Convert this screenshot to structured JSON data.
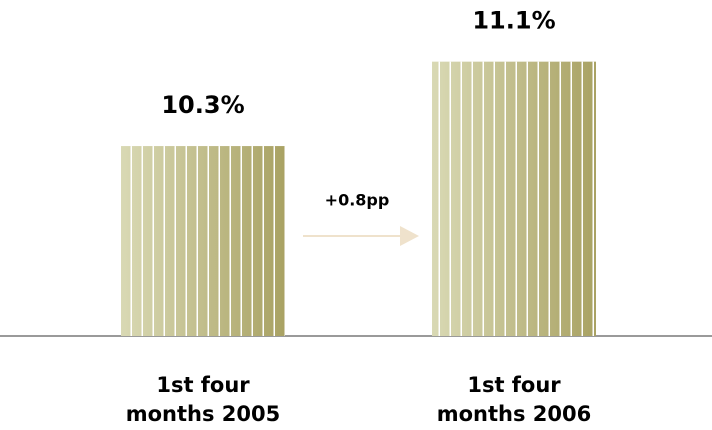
{
  "chart_data": {
    "type": "bar",
    "categories": [
      "1st four months 2005",
      "1st four months 2006"
    ],
    "values": [
      10.3,
      11.1
    ],
    "value_labels": [
      "10.3%",
      "11.1%"
    ],
    "colors": [
      "#d9d9b4",
      "#a9a263"
    ],
    "ylim": [
      8.5,
      11.4
    ],
    "annotation": "+0.8pp"
  }
}
